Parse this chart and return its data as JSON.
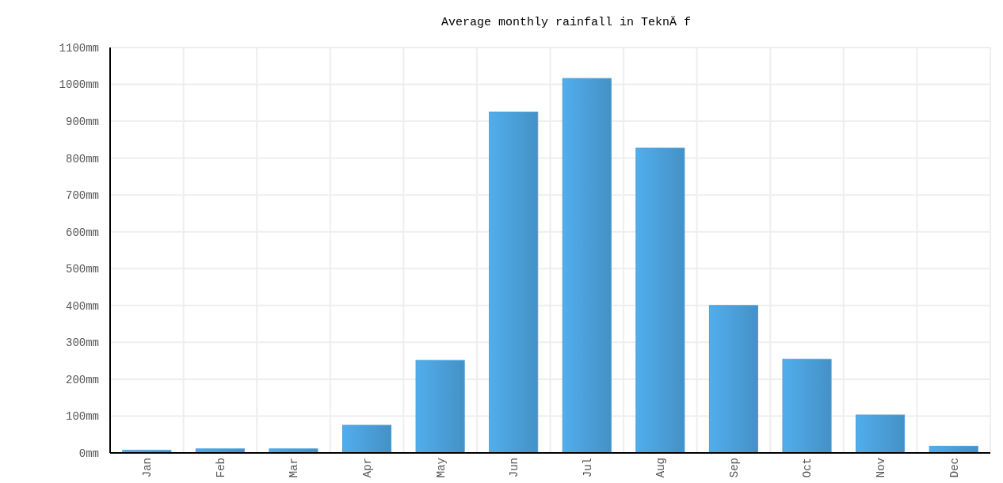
{
  "chart_data": {
    "type": "bar",
    "title": "Average monthly rainfall in TeknÄ f",
    "categories": [
      "Jan",
      "Feb",
      "Mar",
      "Apr",
      "May",
      "Jun",
      "Jul",
      "Aug",
      "Sep",
      "Oct",
      "Nov",
      "Dec"
    ],
    "values": [
      7,
      11,
      11,
      75,
      251,
      925,
      1016,
      827,
      400,
      254,
      103,
      18
    ],
    "color": "#4a9fd8",
    "ylim": [
      0,
      1100
    ],
    "yticks": [
      {
        "value": 0,
        "label": "0mm"
      },
      {
        "value": 100,
        "label": "100mm"
      },
      {
        "value": 200,
        "label": "200mm"
      },
      {
        "value": 300,
        "label": "300mm"
      },
      {
        "value": 400,
        "label": "400mm"
      },
      {
        "value": 500,
        "label": "500mm"
      },
      {
        "value": 600,
        "label": "600mm"
      },
      {
        "value": 700,
        "label": "700mm"
      },
      {
        "value": 800,
        "label": "800mm"
      },
      {
        "value": 900,
        "label": "900mm"
      },
      {
        "value": 1000,
        "label": "1000mm"
      },
      {
        "value": 1100,
        "label": "1100mm"
      }
    ],
    "grid": true
  }
}
